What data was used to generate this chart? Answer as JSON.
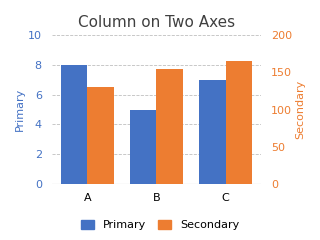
{
  "title": "Column on Two Axes",
  "categories": [
    "A",
    "B",
    "C"
  ],
  "primary_values": [
    8,
    5,
    7
  ],
  "secondary_values": [
    130,
    155,
    165
  ],
  "primary_color": "#4472C4",
  "secondary_color": "#ED7D31",
  "primary_label": "Primary",
  "secondary_label": "Secondary",
  "primary_ylim": [
    0,
    10
  ],
  "secondary_ylim": [
    0,
    200
  ],
  "primary_yticks": [
    0,
    2,
    4,
    6,
    8,
    10
  ],
  "secondary_yticks": [
    0,
    50,
    100,
    150,
    200
  ],
  "title_fontsize": 11,
  "axis_label_fontsize": 8,
  "tick_fontsize": 8,
  "bar_width": 0.38,
  "background_color": "#ffffff",
  "grid_color": "#bfbfbf",
  "primary_tick_color": "#4472C4",
  "secondary_tick_color": "#ED7D31",
  "title_color": "#404040"
}
